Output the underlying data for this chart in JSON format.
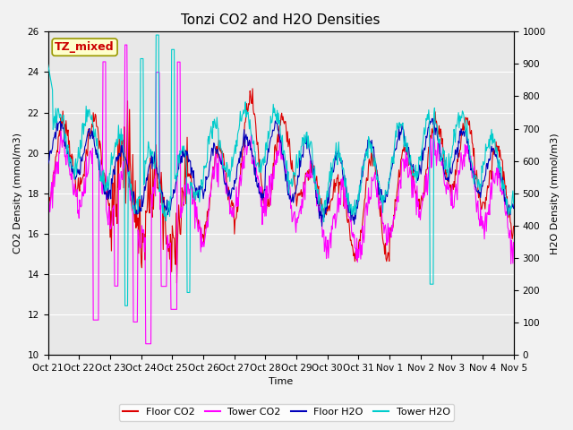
{
  "title": "Tonzi CO2 and H2O Densities",
  "xlabel": "Time",
  "ylabel_left": "CO2 Density (mmol/m3)",
  "ylabel_right": "H2O Density (mmol/m3)",
  "annotation": "TZ_mixed",
  "annotation_color": "#cc0000",
  "annotation_bg": "#ffffcc",
  "annotation_border": "#999900",
  "co2_ylim": [
    10,
    26
  ],
  "h2o_ylim": [
    0,
    1000
  ],
  "xtick_labels": [
    "Oct 21",
    "Oct 22",
    "Oct 23",
    "Oct 24",
    "Oct 25",
    "Oct 26",
    "Oct 27",
    "Oct 28",
    "Oct 29",
    "Oct 30",
    "Oct 31",
    "Nov 1",
    "Nov 2",
    "Nov 3",
    "Nov 4",
    "Nov 5"
  ],
  "bg_color": "#e8e8e8",
  "grid_color": "#ffffff",
  "floor_co2_color": "#dd0000",
  "tower_co2_color": "#ff00ff",
  "floor_h2o_color": "#0000bb",
  "tower_h2o_color": "#00cccc",
  "legend_labels": [
    "Floor CO2",
    "Tower CO2",
    "Floor H2O",
    "Tower H2O"
  ],
  "linewidth": 0.8,
  "title_fontsize": 11
}
